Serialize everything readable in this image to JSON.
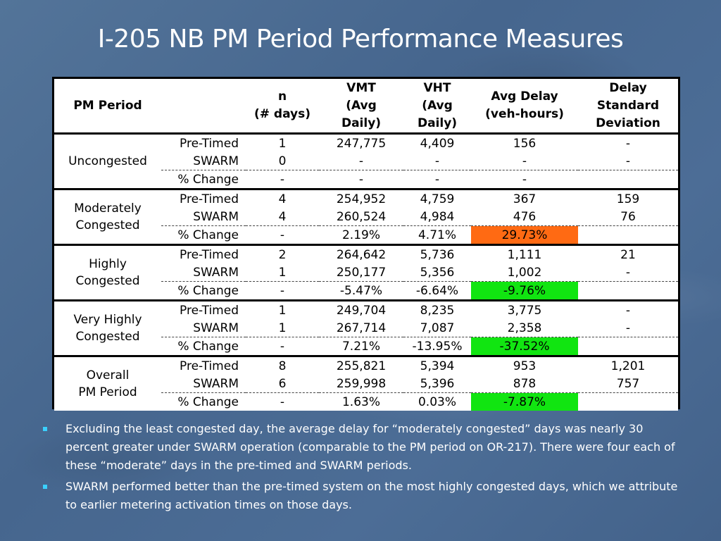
{
  "slide": {
    "title": "I-205 NB PM Period Performance Measures"
  },
  "table": {
    "headers": {
      "period": "PM Period",
      "n_line1": "n",
      "n_line2": "(# days)",
      "vmt_line1": "VMT",
      "vmt_line2": "(Avg",
      "vmt_line3": "Daily)",
      "vht_line1": "VHT",
      "vht_line2": "(Avg",
      "vht_line3": "Daily)",
      "delay_line1": "Avg Delay",
      "delay_line2": "(veh-hours)",
      "sd_line1": "Delay",
      "sd_line2": "Standard",
      "sd_line3": "Deviation"
    },
    "groups": [
      {
        "name_line1": "Uncongested",
        "name_line2": "",
        "rows": [
          {
            "measure": "Pre-Timed",
            "n": "1",
            "vmt": "247,775",
            "vht": "4,409",
            "delay": "156",
            "sd": "-"
          },
          {
            "measure": "SWARM",
            "n": "0",
            "vmt": "-",
            "vht": "-",
            "delay": "-",
            "sd": "-"
          },
          {
            "measure": "% Change",
            "n": "-",
            "vmt": "-",
            "vht": "-",
            "delay": "-",
            "sd": ""
          }
        ]
      },
      {
        "name_line1": "Moderately",
        "name_line2": "Congested",
        "rows": [
          {
            "measure": "Pre-Timed",
            "n": "4",
            "vmt": "254,952",
            "vht": "4,759",
            "delay": "367",
            "sd": "159"
          },
          {
            "measure": "SWARM",
            "n": "4",
            "vmt": "260,524",
            "vht": "4,984",
            "delay": "476",
            "sd": "76"
          },
          {
            "measure": "% Change",
            "n": "-",
            "vmt": "2.19%",
            "vht": "4.71%",
            "delay": "29.73%",
            "sd": ""
          }
        ]
      },
      {
        "name_line1": "Highly",
        "name_line2": "Congested",
        "rows": [
          {
            "measure": "Pre-Timed",
            "n": "2",
            "vmt": "264,642",
            "vht": "5,736",
            "delay": "1,111",
            "sd": "21"
          },
          {
            "measure": "SWARM",
            "n": "1",
            "vmt": "250,177",
            "vht": "5,356",
            "delay": "1,002",
            "sd": "-"
          },
          {
            "measure": "% Change",
            "n": "-",
            "vmt": "-5.47%",
            "vht": "-6.64%",
            "delay": "-9.76%",
            "sd": ""
          }
        ]
      },
      {
        "name_line1": "Very Highly",
        "name_line2": "Congested",
        "rows": [
          {
            "measure": "Pre-Timed",
            "n": "1",
            "vmt": "249,704",
            "vht": "8,235",
            "delay": "3,775",
            "sd": "-"
          },
          {
            "measure": "SWARM",
            "n": "1",
            "vmt": "267,714",
            "vht": "7,087",
            "delay": "2,358",
            "sd": "-"
          },
          {
            "measure": "% Change",
            "n": "-",
            "vmt": "7.21%",
            "vht": "-13.95%",
            "delay": "-37.52%",
            "sd": ""
          }
        ]
      },
      {
        "name_line1": "Overall",
        "name_line2": "PM Period",
        "rows": [
          {
            "measure": "Pre-Timed",
            "n": "8",
            "vmt": "255,821",
            "vht": "5,394",
            "delay": "953",
            "sd": "1,201"
          },
          {
            "measure": "SWARM",
            "n": "6",
            "vmt": "259,998",
            "vht": "5,396",
            "delay": "878",
            "sd": "757"
          },
          {
            "measure": "% Change",
            "n": "-",
            "vmt": "1.63%",
            "vht": "0.03%",
            "delay": "-7.87%",
            "sd": ""
          }
        ]
      }
    ],
    "highlight_colors": {
      "increase": "#ff6a13",
      "decrease": "#11e511"
    }
  },
  "bullets": [
    "Excluding the least congested day, the average delay for “moderately congested” days was nearly 30 percent greater under SWARM operation (comparable to the PM period on OR-217). There were four each of these “moderate” days in the pre-timed and SWARM periods.",
    "SWARM performed better than the pre-timed system on the most highly congested days, which we attribute to earlier metering activation times on those days."
  ],
  "colors": {
    "background": "#4a6a93",
    "title_text": "#ffffff",
    "bullet_marker": "#3ad0ff"
  }
}
